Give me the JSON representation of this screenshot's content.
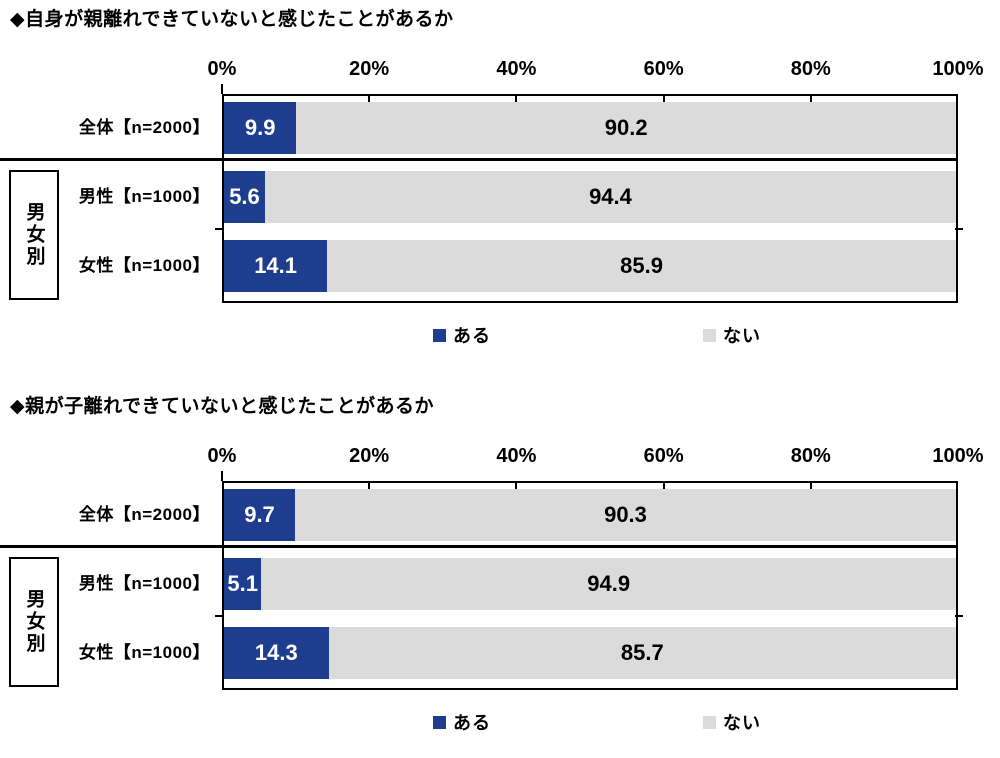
{
  "page": {
    "background": "#ffffff"
  },
  "colors": {
    "series_aru": "#1f3d8f",
    "series_nai": "#dbdbdb",
    "axis_line": "#000000",
    "value_on_aru": "#ffffff",
    "value_on_nai": "#000000"
  },
  "chart_data": [
    {
      "type": "bar",
      "orientation": "horizontal",
      "stacked": true,
      "title": "◆自身が親離れできていないと感じたことがあるか",
      "categories": [
        "全体【n=2000】",
        "男性【n=1000】",
        "女性【n=1000】"
      ],
      "series": [
        {
          "name": "ある",
          "color": "#1f3d8f",
          "label_color": "#ffffff",
          "values": [
            9.9,
            5.6,
            14.1
          ]
        },
        {
          "name": "ない",
          "color": "#dbdbdb",
          "label_color": "#000000",
          "values": [
            90.2,
            94.4,
            85.9
          ]
        }
      ],
      "x_ticks": [
        "0%",
        "20%",
        "40%",
        "60%",
        "80%",
        "100%"
      ],
      "xlim": [
        0,
        100
      ],
      "grid": false,
      "legend_position": "bottom",
      "group_label": "男女別",
      "value_label_decimals": 1
    },
    {
      "type": "bar",
      "orientation": "horizontal",
      "stacked": true,
      "title": "◆親が子離れできていないと感じたことがあるか",
      "categories": [
        "全体【n=2000】",
        "男性【n=1000】",
        "女性【n=1000】"
      ],
      "series": [
        {
          "name": "ある",
          "color": "#1f3d8f",
          "label_color": "#ffffff",
          "values": [
            9.7,
            5.1,
            14.3
          ]
        },
        {
          "name": "ない",
          "color": "#dbdbdb",
          "label_color": "#000000",
          "values": [
            90.3,
            94.9,
            85.7
          ]
        }
      ],
      "x_ticks": [
        "0%",
        "20%",
        "40%",
        "60%",
        "80%",
        "100%"
      ],
      "xlim": [
        0,
        100
      ],
      "grid": false,
      "legend_position": "bottom",
      "group_label": "男女別",
      "value_label_decimals": 1
    }
  ]
}
